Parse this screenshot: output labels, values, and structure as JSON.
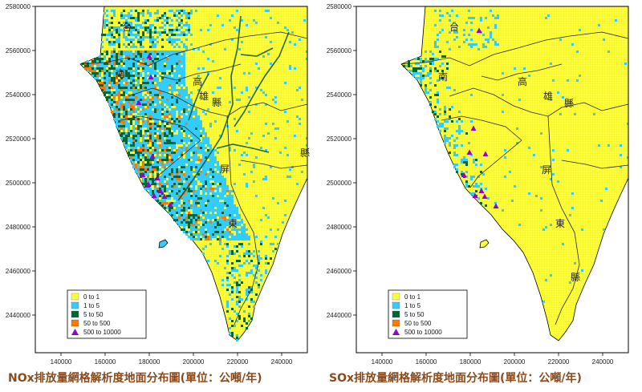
{
  "colors": {
    "land": "#ffff33",
    "grid_land": "#e8e84a",
    "c0": "#ffff33",
    "c1": "#33ccff",
    "c2": "#006633",
    "c3": "#ff7700",
    "c4": "#9900cc",
    "caption": "#8a4a1c"
  },
  "axes": {
    "y_ticks": [
      "2580000",
      "2560000",
      "2540000",
      "2520000",
      "2500000",
      "2480000",
      "2460000",
      "2440000"
    ],
    "x_ticks": [
      "140000",
      "160000",
      "180000",
      "200000",
      "220000",
      "240000"
    ]
  },
  "legend": {
    "items": [
      {
        "label": "0  to  1",
        "shape": "square",
        "color_key": "c0"
      },
      {
        "label": "1  to  5",
        "shape": "square",
        "color_key": "c1"
      },
      {
        "label": "5  to  50",
        "shape": "square",
        "color_key": "c2"
      },
      {
        "label": "50  to  500",
        "shape": "square",
        "color_key": "c3"
      },
      {
        "label": "500  to  10000",
        "shape": "triangle",
        "color_key": "c4"
      }
    ]
  },
  "place_names": [
    "台",
    "南",
    "高",
    "雄",
    "縣",
    "屏",
    "東",
    "縣"
  ],
  "panels": [
    {
      "id": "nox",
      "caption": "NOx排放量網格解析度地面分布圖(單位：公噸/年)"
    },
    {
      "id": "sox",
      "caption": "SOx排放量網格解析度地面分布圖(單位：公噸/年)"
    }
  ]
}
